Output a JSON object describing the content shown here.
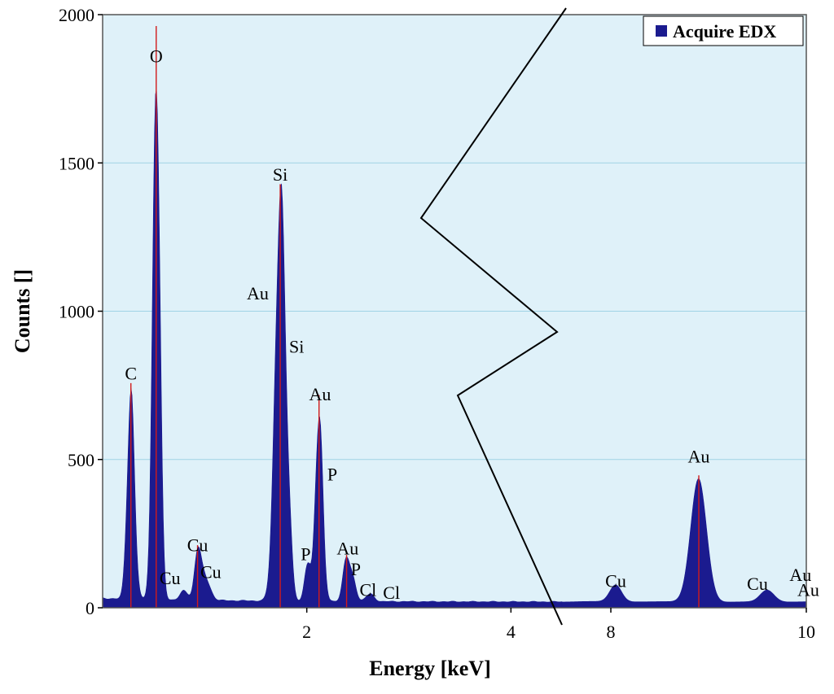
{
  "chart_data": {
    "type": "area",
    "title": "",
    "xlabel": "Energy [keV]",
    "ylabel": "Counts []",
    "ylim": [
      0,
      2000
    ],
    "yticks": [
      0,
      500,
      1000,
      1500,
      2000
    ],
    "grid": true,
    "legend": {
      "position": "top-right",
      "entries": [
        "Acquire EDX"
      ]
    },
    "colors": {
      "plot_background": "#dff1f9",
      "series_fill": "#1b1b8f",
      "peak_marker": "#d11a1a",
      "grid": "#9fd3e6"
    },
    "axis_break": {
      "from_keV": 4.5,
      "to_keV": 7.5
    },
    "xticks": [
      {
        "label": "2",
        "keV": 2
      },
      {
        "label": "4",
        "keV": 4
      },
      {
        "label": "8",
        "keV": 8
      },
      {
        "label": "10",
        "keV": 10
      }
    ],
    "series": [
      {
        "name": "Acquire EDX",
        "x_range_keV": [
          0,
          10
        ],
        "background_counts": 20,
        "peaks": [
          {
            "keV": 0.277,
            "counts": 720,
            "width": 0.035
          },
          {
            "keV": 0.525,
            "counts": 1790,
            "width": 0.035
          },
          {
            "keV": 0.8,
            "counts": 30,
            "width": 0.04
          },
          {
            "keV": 0.93,
            "counts": 155,
            "width": 0.03
          },
          {
            "keV": 1.0,
            "counts": 80,
            "width": 0.05
          },
          {
            "keV": 1.74,
            "counts": 1390,
            "width": 0.05
          },
          {
            "keV": 1.83,
            "counts": 120,
            "width": 0.03
          },
          {
            "keV": 2.01,
            "counts": 125,
            "width": 0.03
          },
          {
            "keV": 2.12,
            "counts": 660,
            "width": 0.035
          },
          {
            "keV": 2.39,
            "counts": 145,
            "width": 0.035
          },
          {
            "keV": 2.46,
            "counts": 60,
            "width": 0.03
          },
          {
            "keV": 2.62,
            "counts": 25,
            "width": 0.04
          },
          {
            "keV": 8.05,
            "counts": 55,
            "width": 0.06
          },
          {
            "keV": 8.9,
            "counts": 440,
            "width": 0.08
          },
          {
            "keV": 9.6,
            "counts": 40,
            "width": 0.07
          }
        ],
        "peak_markers_keV": [
          0.277,
          0.525,
          0.93,
          1.74,
          2.12,
          2.39,
          8.9
        ]
      }
    ],
    "annotations": [
      {
        "text": "O",
        "keV": 0.525,
        "counts": 1840
      },
      {
        "text": "C",
        "keV": 0.277,
        "counts": 770
      },
      {
        "text": "Cu",
        "keV": 0.93,
        "counts": 190
      },
      {
        "text": "Cu",
        "keV": 0.66,
        "counts": 80
      },
      {
        "text": "Cu",
        "keV": 1.06,
        "counts": 100
      },
      {
        "text": "Si",
        "keV": 1.74,
        "counts": 1440
      },
      {
        "text": "Au",
        "keV": 1.52,
        "counts": 1040
      },
      {
        "text": "Si",
        "keV": 1.9,
        "counts": 860
      },
      {
        "text": "Au",
        "keV": 2.13,
        "counts": 700
      },
      {
        "text": "P",
        "keV": 2.25,
        "counts": 430
      },
      {
        "text": "P",
        "keV": 1.99,
        "counts": 160
      },
      {
        "text": "Au",
        "keV": 2.4,
        "counts": 180
      },
      {
        "text": "P",
        "keV": 2.48,
        "counts": 110
      },
      {
        "text": "Cl",
        "keV": 2.6,
        "counts": 40
      },
      {
        "text": "Cl",
        "keV": 2.83,
        "counts": 30
      },
      {
        "text": "Au",
        "keV": 8.9,
        "counts": 490
      },
      {
        "text": "Cu",
        "keV": 8.05,
        "counts": 70
      },
      {
        "text": "Cu",
        "keV": 9.5,
        "counts": 60
      },
      {
        "text": "Au",
        "keV": 9.94,
        "counts": 90
      },
      {
        "text": "Au",
        "keV": 10.02,
        "counts": 40
      }
    ]
  }
}
